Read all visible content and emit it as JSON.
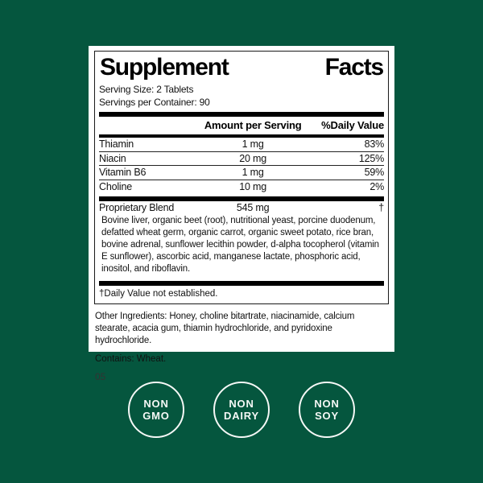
{
  "background_color": "#05563e",
  "label": {
    "title": {
      "word1": "Supplement",
      "word2": "Facts"
    },
    "serving_size": "Serving Size: 2 Tablets",
    "servings_per_container": "Servings per Container: 90",
    "columns": {
      "amount": "Amount per Serving",
      "daily_value": "%Daily Value"
    },
    "rows": [
      {
        "name": "Thiamin",
        "amount": "1 mg",
        "dv": "83%"
      },
      {
        "name": "Niacin",
        "amount": "20 mg",
        "dv": "125%"
      },
      {
        "name": "Vitamin B6",
        "amount": "1 mg",
        "dv": "59%"
      },
      {
        "name": "Choline",
        "amount": "10 mg",
        "dv": "2%"
      }
    ],
    "proprietary_blend": {
      "name": "Proprietary Blend",
      "amount": "545 mg",
      "dv": "†"
    },
    "blend_ingredients": "Bovine liver, organic beet (root), nutritional yeast, porcine duodenum, defatted wheat germ, organic carrot, organic sweet potato, rice bran, bovine adrenal, sunflower lecithin powder, d-alpha tocopherol (vitamin E sunflower), ascorbic acid, manganese lactate, phosphoric acid, inositol, and riboflavin.",
    "footnote": "†Daily Value not established.",
    "other_ingredients": "Other Ingredients: Honey, choline bitartrate, niacinamide, calcium stearate, acacia gum, thiamin hydrochloride, and pyridoxine hydrochloride.",
    "contains": "Contains: Wheat.",
    "code": "05"
  },
  "badges": [
    {
      "line1": "NON",
      "line2": "GMO"
    },
    {
      "line1": "NON",
      "line2": "DAIRY"
    },
    {
      "line1": "NON",
      "line2": "SOY"
    }
  ]
}
